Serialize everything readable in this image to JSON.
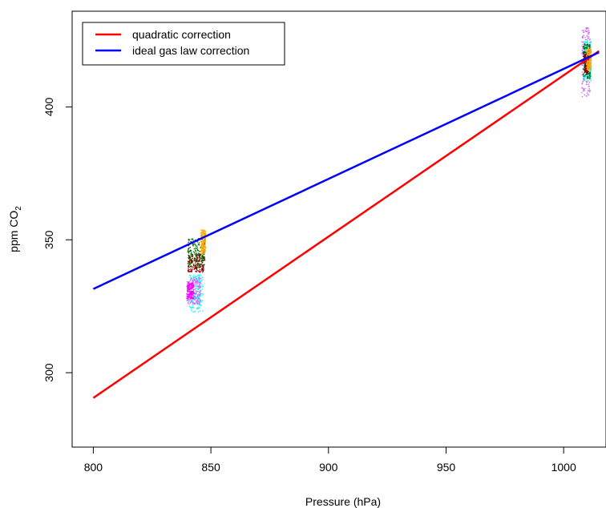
{
  "chart_data": {
    "type": "scatter",
    "xlabel": "Pressure (hPa)",
    "ylabel_main": "ppm CO",
    "ylabel_sub": "2",
    "xlim": [
      791,
      1018
    ],
    "ylim": [
      272,
      436
    ],
    "xticks": [
      800,
      850,
      900,
      950,
      1000
    ],
    "yticks": [
      300,
      350,
      400
    ],
    "legend_position": "top-left",
    "grid": false,
    "lines": [
      {
        "name": "quadratic correction",
        "color": "#ff0000",
        "x": [
          800,
          1015
        ],
        "y": [
          290.5,
          421
        ]
      },
      {
        "name": "ideal gas law correction",
        "color": "#0000ff",
        "x": [
          800,
          1015
        ],
        "y": [
          331.5,
          420.5
        ]
      }
    ],
    "clusters": [
      {
        "color": "#00ffff",
        "x": [
          840.5,
          846.5
        ],
        "y": [
          323,
          337
        ]
      },
      {
        "color": "#cc66ff",
        "x": [
          839.5,
          845.5
        ],
        "y": [
          326,
          336
        ]
      },
      {
        "color": "#8b0000",
        "x": [
          840,
          847
        ],
        "y": [
          338,
          345
        ]
      },
      {
        "color": "#006400",
        "x": [
          840,
          847.5
        ],
        "y": [
          340,
          351
        ]
      },
      {
        "color": "#ff00ff",
        "x": [
          839.5,
          842.5
        ],
        "y": [
          328,
          334
        ]
      },
      {
        "color": "#ffa500",
        "x": [
          845.5,
          847.5
        ],
        "y": [
          345,
          354
        ]
      },
      {
        "color": "#cc66ff",
        "x": [
          1007.5,
          1011
        ],
        "y": [
          404,
          430
        ]
      },
      {
        "color": "#00ffff",
        "x": [
          1008,
          1011.5
        ],
        "y": [
          410,
          425
        ]
      },
      {
        "color": "#006400",
        "x": [
          1008,
          1011
        ],
        "y": [
          411,
          424
        ]
      },
      {
        "color": "#8b0000",
        "x": [
          1008.5,
          1010.5
        ],
        "y": [
          413,
          420
        ]
      },
      {
        "color": "#ffa500",
        "x": [
          1009.5,
          1011.5
        ],
        "y": [
          414,
          422
        ]
      }
    ]
  }
}
